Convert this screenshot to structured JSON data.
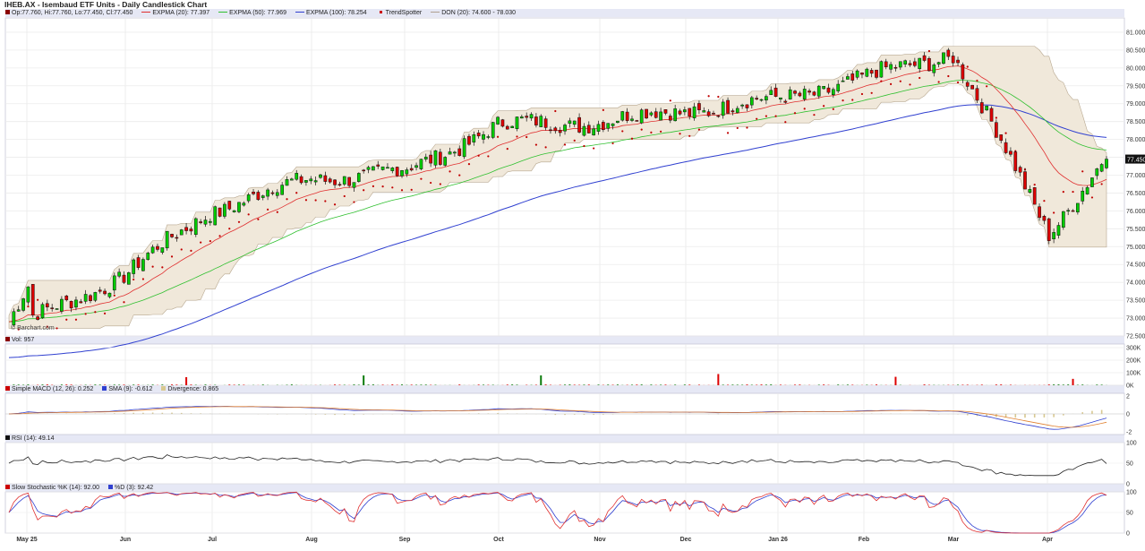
{
  "header": {
    "title": "IHEB.AX - Isembaud ETF Units - Daily Candlestick Chart",
    "ohlc": "Op:77.760, Hi:77.760, Lo:77.450, Cl:77.450",
    "ema20": "EXPMA (20): 77.397",
    "ema50": "EXPMA (50): 77.969",
    "ema100": "EXPMA (100): 78.254",
    "trendspotter": "TrendSpotter",
    "don": "DON (20): 74.600 - 78.030"
  },
  "watermark": "© Barchart.com",
  "price_label": "77.450",
  "panes": {
    "volume": {
      "label": "Vol: 957"
    },
    "macd": {
      "label": "Simple MACD (12, 26): 0.252",
      "sma": "SMA (9): -0.612",
      "divergence": "Divergence: 0.865"
    },
    "rsi": {
      "label": "RSI (14): 49.14"
    },
    "stoch": {
      "label": "Slow Stochastic %K (14): 92.00",
      "d": "%D (3): 92.42"
    }
  },
  "colors": {
    "up": "#00cc00",
    "down": "#dd0000",
    "ema20": "#e03030",
    "ema50": "#30c030",
    "ema100": "#3040d0",
    "don_fill": "#f0e8da",
    "macd": "#3040d0",
    "signal": "#e08030",
    "hist": "#d8c890",
    "k": "#e03030",
    "d": "#3040d0"
  },
  "chart_data": [
    {
      "type": "candlestick",
      "title": "IHEB.AX - Isembaud ETF Units - Daily Candlestick Chart",
      "x_tick_labels": [
        "May 25",
        "Jun",
        "Jul",
        "Aug",
        "Sep",
        "Oct",
        "Nov",
        "Dec",
        "Jan 26",
        "Feb",
        "Mar",
        "Apr"
      ],
      "y_tick_labels": [
        "72.500",
        "73.000",
        "73.500",
        "74.000",
        "74.500",
        "75.000",
        "75.500",
        "76.000",
        "76.500",
        "77.000",
        "77.500",
        "78.000",
        "78.500",
        "79.000",
        "79.500",
        "80.000",
        "80.500",
        "81.000"
      ],
      "ylim": [
        72.5,
        81.4
      ],
      "close_by_month_start": [
        72.9,
        74.2,
        76.0,
        76.9,
        77.1,
        78.4,
        78.5,
        78.8,
        79.1,
        79.7,
        80.4,
        75.4
      ],
      "last": {
        "open": 77.76,
        "high": 77.76,
        "low": 77.45,
        "close": 77.45
      },
      "ema20_last": 77.397,
      "ema50_last": 77.969,
      "ema100_last": 78.254,
      "donchian_last": [
        74.6,
        78.03
      ]
    },
    {
      "type": "bar",
      "title": "Vol: 957",
      "y_tick_labels": [
        "300K",
        "200K",
        "100K",
        "0K"
      ],
      "ylim": [
        0,
        300000
      ],
      "last": 957
    },
    {
      "type": "line",
      "title": "Simple MACD (12, 26)",
      "y_tick_labels": [
        "2",
        "0",
        "-2"
      ],
      "ylim": [
        -2,
        2
      ],
      "macd_last": 0.252,
      "signal_last": -0.612,
      "divergence_last": 0.865
    },
    {
      "type": "line",
      "title": "RSI (14)",
      "y_tick_labels": [
        "100",
        "50",
        "0"
      ],
      "ylim": [
        0,
        100
      ],
      "last": 49.14
    },
    {
      "type": "line",
      "title": "Slow Stochastic",
      "y_tick_labels": [
        "100",
        "50",
        "0"
      ],
      "ylim": [
        0,
        100
      ],
      "k_last": 92.0,
      "d_last": 92.42
    }
  ]
}
